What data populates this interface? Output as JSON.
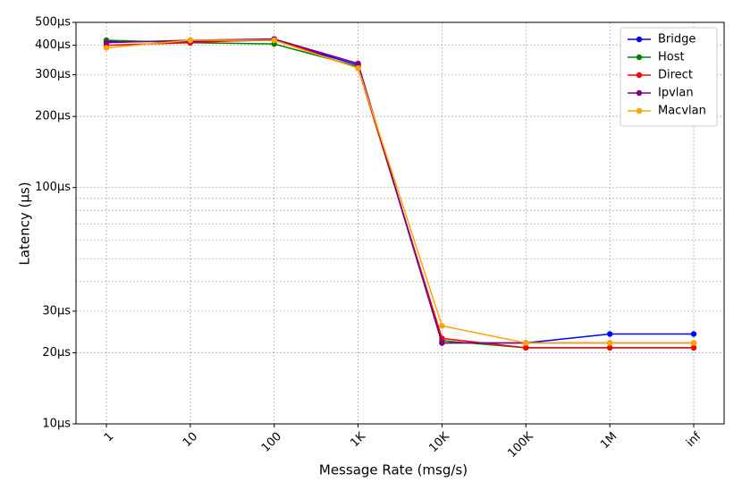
{
  "chart_data": {
    "type": "line",
    "x_label": "Message Rate (msg/s)",
    "y_label": "Latency (µs)",
    "categories": [
      "1",
      "10",
      "100",
      "1K",
      "10K",
      "100K",
      "1M",
      "inf"
    ],
    "series": [
      {
        "name": "Bridge",
        "color": "#0000ff",
        "values": [
          415,
          415,
          420,
          330,
          22,
          22,
          24,
          24
        ]
      },
      {
        "name": "Host",
        "color": "#008000",
        "values": [
          420,
          410,
          405,
          325,
          22.5,
          21,
          21,
          21
        ]
      },
      {
        "name": "Direct",
        "color": "#ff0000",
        "values": [
          400,
          410,
          425,
          320,
          23,
          21,
          21,
          21
        ]
      },
      {
        "name": "Ipvlan",
        "color": "#800080",
        "values": [
          410,
          420,
          425,
          335,
          22,
          22,
          22,
          22
        ]
      },
      {
        "name": "Macvlan",
        "color": "#ffa500",
        "values": [
          390,
          420,
          420,
          320,
          26,
          22,
          22,
          22
        ]
      }
    ],
    "y_log": true,
    "ylim": [
      10,
      500
    ],
    "yticks": [
      {
        "value": 10,
        "label": "10µs"
      },
      {
        "value": 20,
        "label": "20µs"
      },
      {
        "value": 30,
        "label": "30µs"
      },
      {
        "value": 100,
        "label": "100µs"
      },
      {
        "value": 200,
        "label": "200µs"
      },
      {
        "value": 300,
        "label": "300µs"
      },
      {
        "value": 400,
        "label": "400µs"
      },
      {
        "value": 500,
        "label": "500µs"
      }
    ],
    "minor_yticks": [
      40,
      50,
      60,
      70,
      80,
      90
    ],
    "grid": true,
    "legend": "upper right"
  }
}
